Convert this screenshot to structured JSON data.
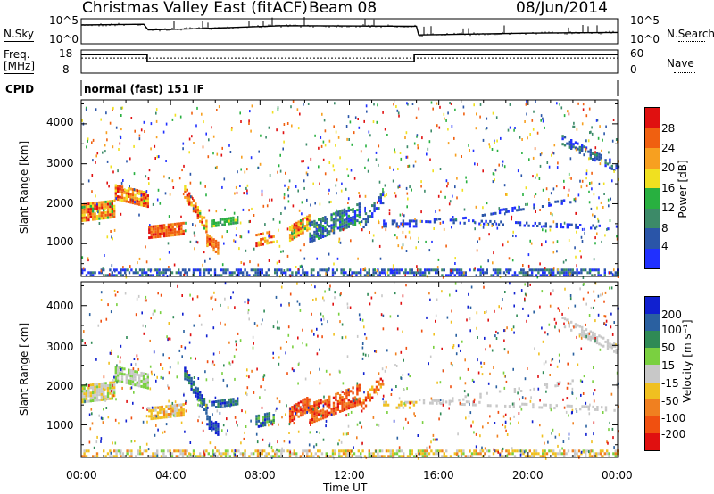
{
  "header": {
    "station": "Christmas Valley East (fitACF)",
    "beam": "Beam 08",
    "date": "08/Jun/2014"
  },
  "noise_panel": {
    "left_label": "N.Sky",
    "right_label": "N.Search",
    "left_ticks": [
      "10^5",
      "10^0"
    ],
    "right_ticks": [
      "10^5",
      "10^0"
    ]
  },
  "freq_panel": {
    "left_label_1": "Freq.",
    "left_label_2": "[MHz]",
    "right_label": "Nave",
    "left_ticks": [
      "18",
      "8"
    ],
    "right_ticks": [
      "60",
      "0"
    ]
  },
  "cpid": {
    "label": "CPID",
    "value": "normal (fast) 151 IF"
  },
  "chart_data": [
    {
      "type": "line",
      "panel": "noise",
      "x_range_hours": [
        0,
        24
      ],
      "series": [
        {
          "points": [
            [
              0,
              0.75
            ],
            [
              2.8,
              0.78
            ],
            [
              3.0,
              0.55
            ],
            [
              5.2,
              0.6
            ],
            [
              9.0,
              0.72
            ],
            [
              15.0,
              0.7
            ],
            [
              15.1,
              0.35
            ],
            [
              20.0,
              0.42
            ],
            [
              24,
              0.45
            ]
          ]
        }
      ]
    },
    {
      "type": "line",
      "panel": "frequency",
      "x_range_hours": [
        0,
        24
      ],
      "y_range": [
        8,
        18
      ],
      "series": [
        {
          "name": "Freq.",
          "points": [
            [
              0,
              16.0
            ],
            [
              2.95,
              16.0
            ],
            [
              2.95,
              13.0
            ],
            [
              14.9,
              13.0
            ],
            [
              14.9,
              16.0
            ],
            [
              24,
              16.0
            ]
          ]
        },
        {
          "name": "Nave",
          "points": [
            [
              0,
              14.5
            ],
            [
              24,
              14.5
            ]
          ]
        }
      ]
    },
    {
      "type": "heatmap",
      "panel": "power",
      "title": "",
      "ylabel": "Slant Range [km]",
      "ylim": [
        180,
        4600
      ],
      "yticks": [
        "1000",
        "2000",
        "3000",
        "4000"
      ],
      "x_range_hours": [
        0,
        24
      ],
      "colorbar_label": "Power [dB]",
      "colorbar_ticks": [
        "4",
        "8",
        "12",
        "16",
        "20",
        "24",
        "28"
      ],
      "colors": [
        "#2030ff",
        "#2a55a8",
        "#3c8a68",
        "#28b040",
        "#f0e020",
        "#f7a020",
        "#f06010",
        "#e01010"
      ]
    },
    {
      "type": "heatmap",
      "panel": "velocity",
      "title": "",
      "xlabel": "Time UT",
      "ylabel": "Slant Range [km]",
      "ylim": [
        180,
        4600
      ],
      "yticks": [
        "1000",
        "2000",
        "3000",
        "4000"
      ],
      "x_range_hours": [
        0,
        24
      ],
      "xticks": [
        "00:00",
        "04:00",
        "08:00",
        "12:00",
        "16:00",
        "20:00",
        "00:00"
      ],
      "colorbar_label": "Velocity [m s⁻¹]",
      "colorbar_ticks": [
        "200",
        "100",
        "50",
        "15",
        "-15",
        "-50",
        "-100",
        "-200"
      ],
      "colors": [
        "#1020d0",
        "#2a60a0",
        "#2f8a55",
        "#7ad040",
        "#c8c8c8",
        "#f0c020",
        "#f08020",
        "#f05010",
        "#e01010"
      ]
    }
  ]
}
